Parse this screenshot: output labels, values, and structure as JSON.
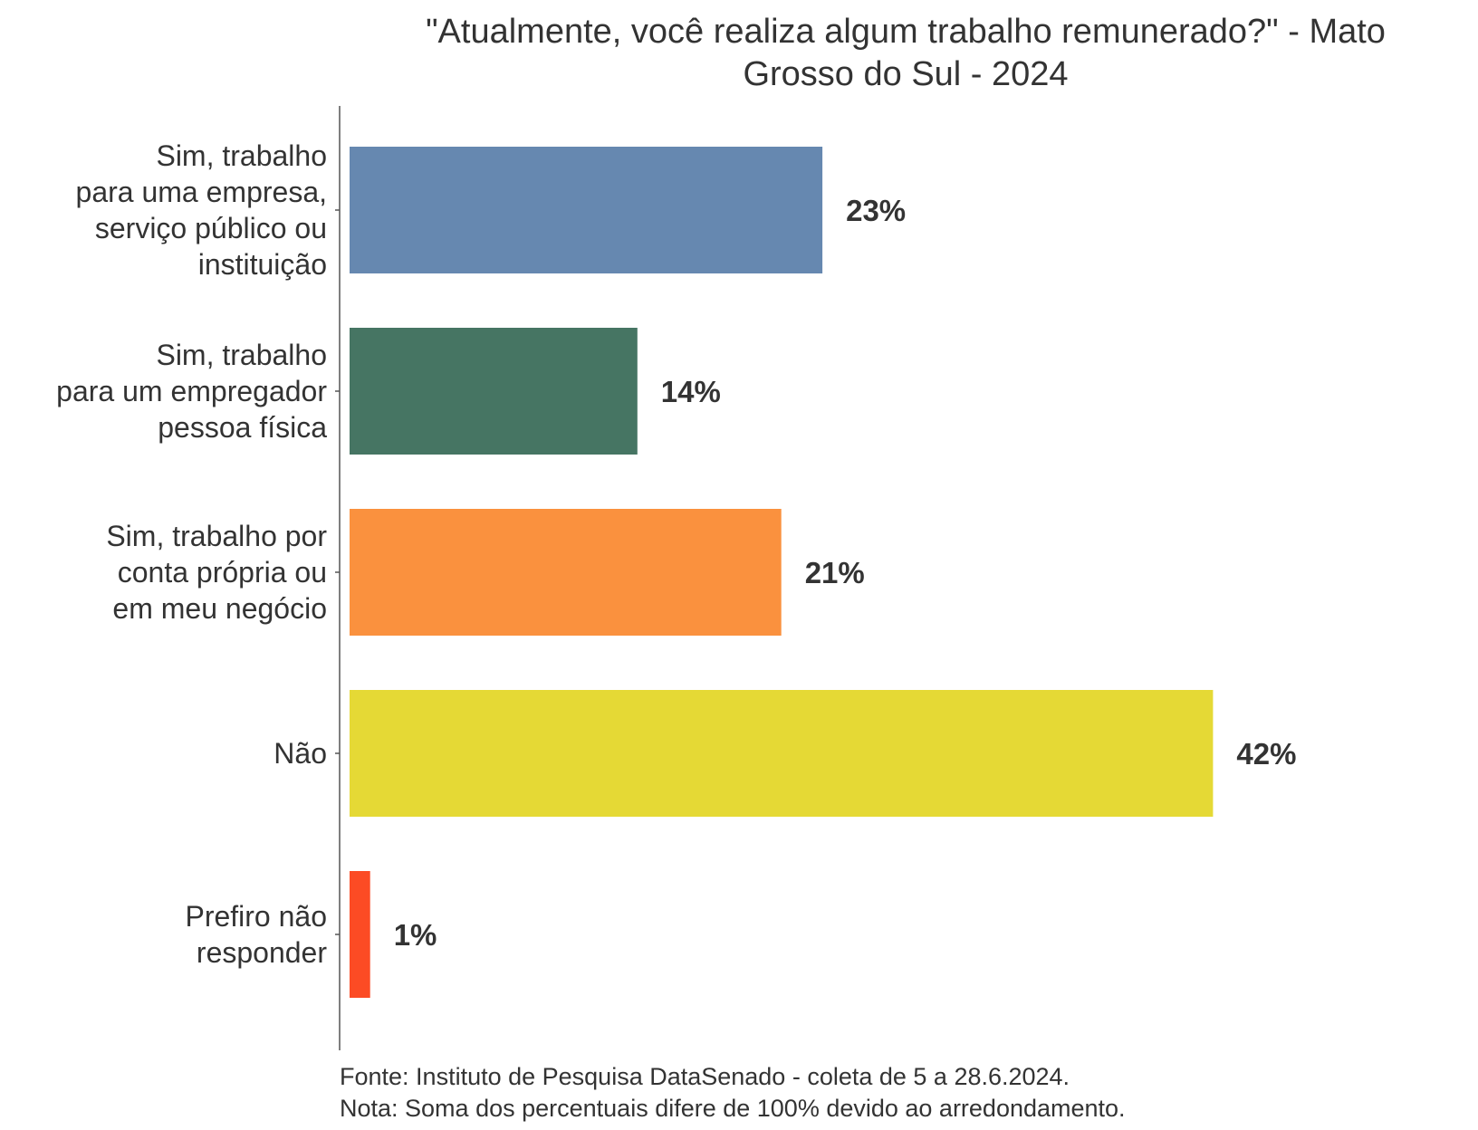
{
  "chart_data": {
    "type": "bar",
    "orientation": "horizontal",
    "title": "\"Atualmente, você realiza algum trabalho remunerado?\" - Mato Grosso do Sul - 2024",
    "title_lines": [
      "\"Atualmente, você realiza algum trabalho remunerado?\" - Mato",
      "Grosso do Sul - 2024"
    ],
    "categories": [
      [
        "Sim, trabalho",
        "para uma empresa,",
        "serviço público ou",
        "instituição"
      ],
      [
        "Sim, trabalho",
        "para um empregador",
        "pessoa física"
      ],
      [
        "Sim, trabalho por",
        "conta própria ou",
        "em meu negócio"
      ],
      [
        "Não"
      ],
      [
        "Prefiro não",
        "responder"
      ]
    ],
    "values": [
      23,
      14,
      21,
      42,
      1
    ],
    "value_labels": [
      "23%",
      "14%",
      "21%",
      "42%",
      "1%"
    ],
    "colors": [
      "#6688b0",
      "#467563",
      "#fa913e",
      "#e5d935",
      "#fc4b24"
    ],
    "xlim": [
      0,
      50
    ],
    "grid": false,
    "caption_lines": [
      "Fonte: Instituto de Pesquisa DataSenado - coleta de 5 a 28.6.2024.",
      "Nota: Soma dos percentuais difere de 100% devido ao arredondamento."
    ]
  }
}
